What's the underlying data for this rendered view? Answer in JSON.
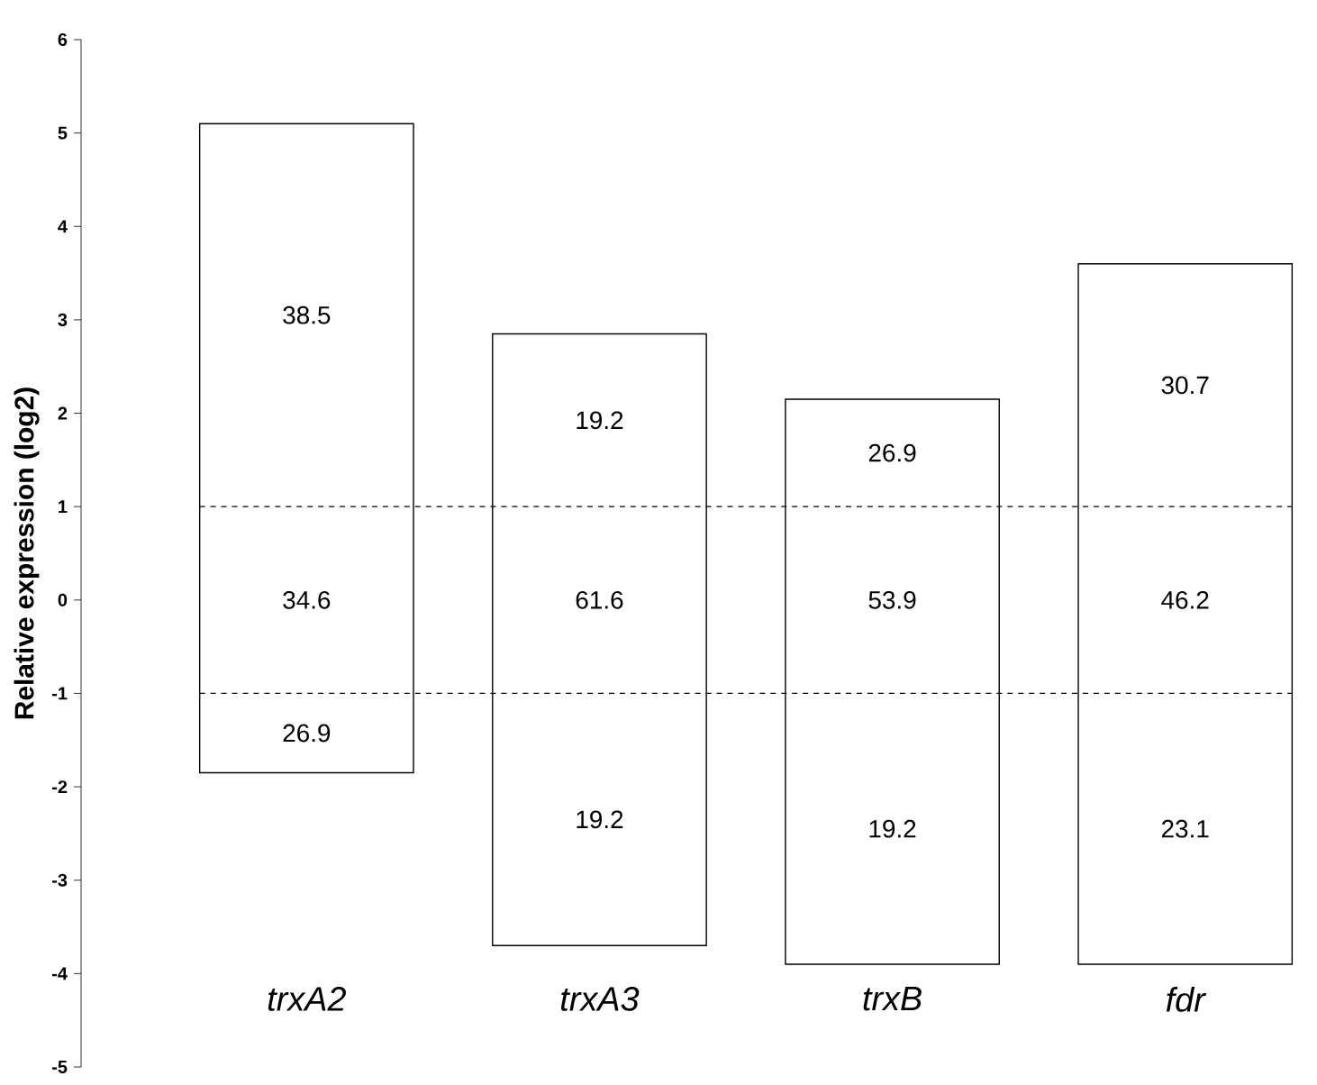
{
  "chart_data": {
    "type": "bar",
    "ylabel": "Relative expression (log2)",
    "categories": [
      "trxA2",
      "trxA3",
      "trxB",
      "fdr"
    ],
    "base": [
      -1.85,
      -3.7,
      -3.9,
      -3.9
    ],
    "values": [
      6.95,
      6.55,
      6.05,
      7.5
    ],
    "color": "#ffffff",
    "ylim": [
      -5,
      6
    ],
    "yticks": [
      -5,
      -4,
      -3,
      -2,
      -1,
      0,
      1,
      2,
      3,
      4,
      5,
      6
    ],
    "ref_lines": [
      {
        "axis": "y",
        "value": 1,
        "line_style": "dashed"
      },
      {
        "axis": "y",
        "value": -1,
        "line_style": "dashed"
      }
    ],
    "annotations": [
      "38.5",
      "34.6",
      "26.9",
      "19.2",
      "61.6",
      "19.2",
      "26.9",
      "53.9",
      "19.2",
      "30.7",
      "46.2",
      "23.1"
    ]
  }
}
